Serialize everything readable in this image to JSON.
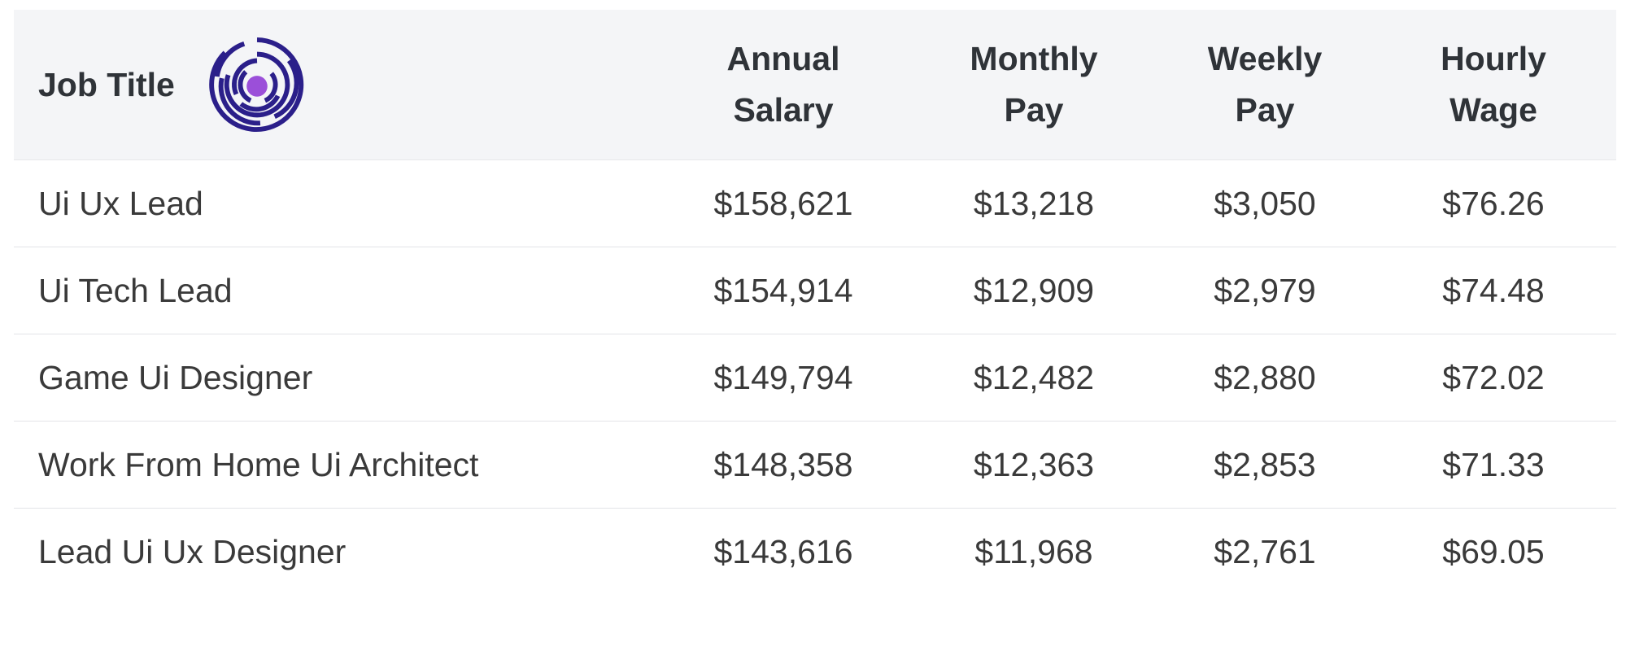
{
  "table": {
    "headers": {
      "job_title": "Job Title",
      "annual_1": "Annual",
      "annual_2": "Salary",
      "monthly_1": "Monthly",
      "monthly_2": "Pay",
      "weekly_1": "Weekly",
      "weekly_2": "Pay",
      "hourly_1": "Hourly",
      "hourly_2": "Wage"
    },
    "rows": [
      {
        "title": "Ui Ux Lead",
        "annual": "$158,621",
        "monthly": "$13,218",
        "weekly": "$3,050",
        "hourly": "$76.26"
      },
      {
        "title": "Ui Tech Lead",
        "annual": "$154,914",
        "monthly": "$12,909",
        "weekly": "$2,979",
        "hourly": "$74.48"
      },
      {
        "title": "Game Ui Designer",
        "annual": "$149,794",
        "monthly": "$12,482",
        "weekly": "$2,880",
        "hourly": "$72.02"
      },
      {
        "title": "Work From Home Ui Architect",
        "annual": "$148,358",
        "monthly": "$12,363",
        "weekly": "$2,853",
        "hourly": "$71.33"
      },
      {
        "title": "Lead Ui Ux Designer",
        "annual": "$143,616",
        "monthly": "$11,968",
        "weekly": "$2,761",
        "hourly": "$69.05"
      }
    ]
  },
  "logo": {
    "icon": "maze-logo-icon",
    "ring_color": "#2b1f8a",
    "center_color": "#9b4fd9"
  }
}
